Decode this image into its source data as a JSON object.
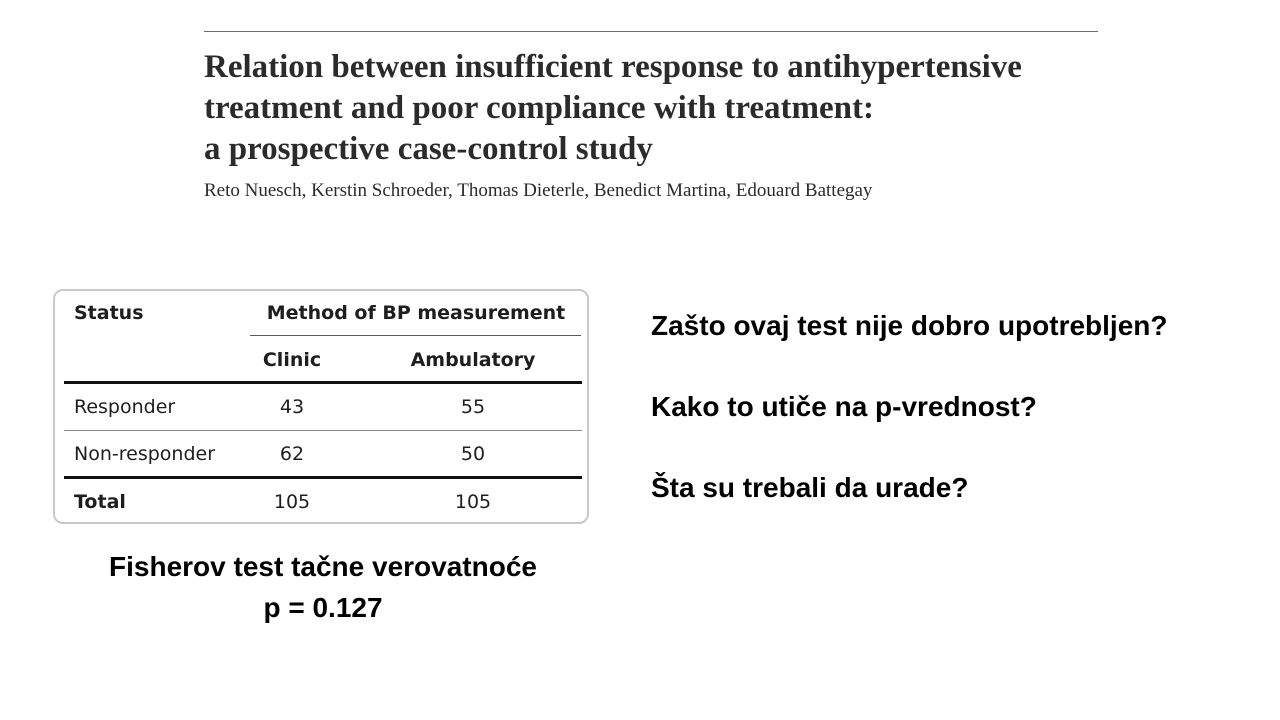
{
  "paper": {
    "title_lines": [
      "Relation between insufficient response to antihypertensive",
      "treatment and poor compliance with treatment:",
      "a prospective case-control study"
    ],
    "authors": "Reto Nuesch, Kerstin Schroeder, Thomas Dieterle, Benedict Martina, Edouard Battegay"
  },
  "table": {
    "status_header": "Status",
    "group_header": "Method of BP measurement",
    "columns": [
      "Clinic",
      "Ambulatory"
    ],
    "rows": [
      {
        "label": "Responder",
        "values": [
          "43",
          "55"
        ]
      },
      {
        "label": "Non-responder",
        "values": [
          "62",
          "50"
        ]
      }
    ],
    "total": {
      "label": "Total",
      "values": [
        "105",
        "105"
      ]
    }
  },
  "test": {
    "name": "Fisherov test tačne verovatnoće",
    "p_value": "p = 0.127"
  },
  "questions": [
    "Zašto ovaj test nije dobro upotrebljen?",
    "Kako to utiče na p-vrednost?",
    "Šta su trebali da urade?"
  ]
}
